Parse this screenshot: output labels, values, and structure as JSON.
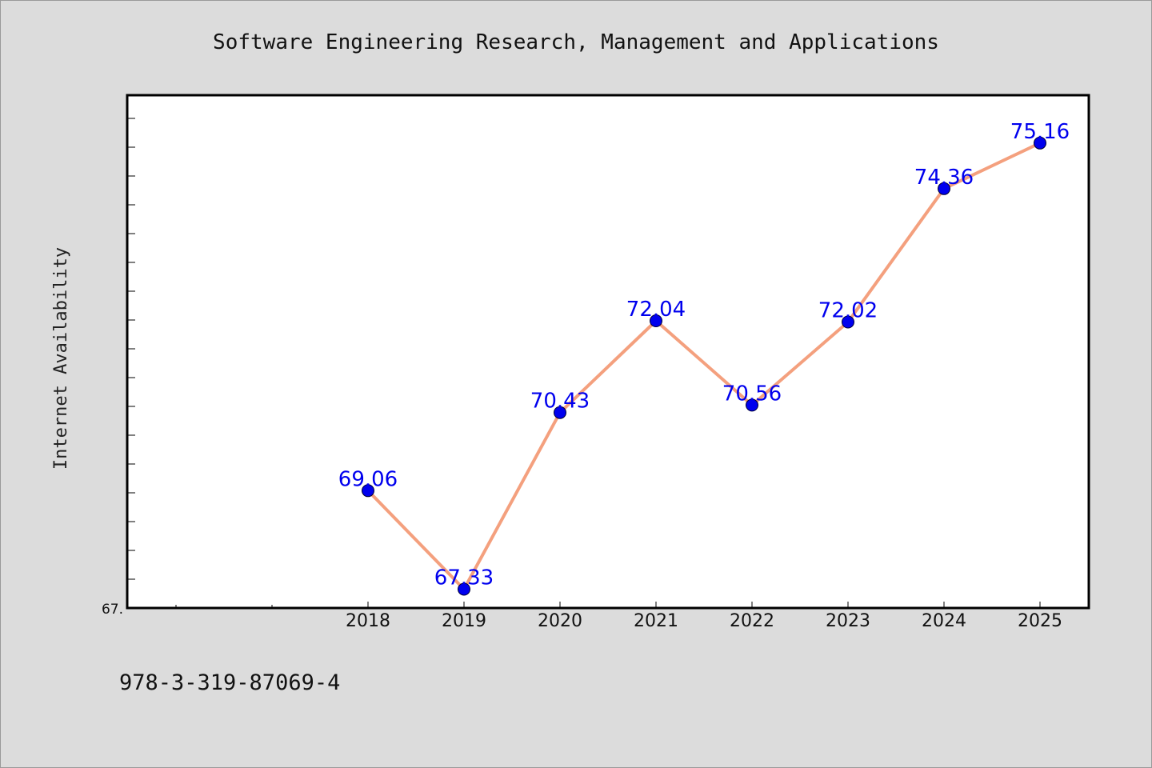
{
  "chart_data": {
    "type": "line",
    "title": "Software Engineering Research, Management and Applications",
    "xlabel": "",
    "ylabel": "Internet Availability",
    "categories": [
      "2018",
      "2019",
      "2020",
      "2021",
      "2022",
      "2023",
      "2024",
      "2025"
    ],
    "values": [
      69.06,
      67.33,
      70.43,
      72.04,
      70.56,
      72.02,
      74.36,
      75.16
    ],
    "data_labels": [
      "69.06",
      "67.33",
      "70.43",
      "72.04",
      "70.56",
      "72.02",
      "74.36",
      "75.16"
    ],
    "ylim": [
      67.0,
      76.0
    ],
    "ytick_label": "67.",
    "grid": false,
    "legend": "none",
    "line_color": "#f4a07e",
    "marker_color": "#0000ee",
    "label_color": "#0000ee"
  },
  "footer": {
    "isbn": "978-3-319-87069-4"
  }
}
